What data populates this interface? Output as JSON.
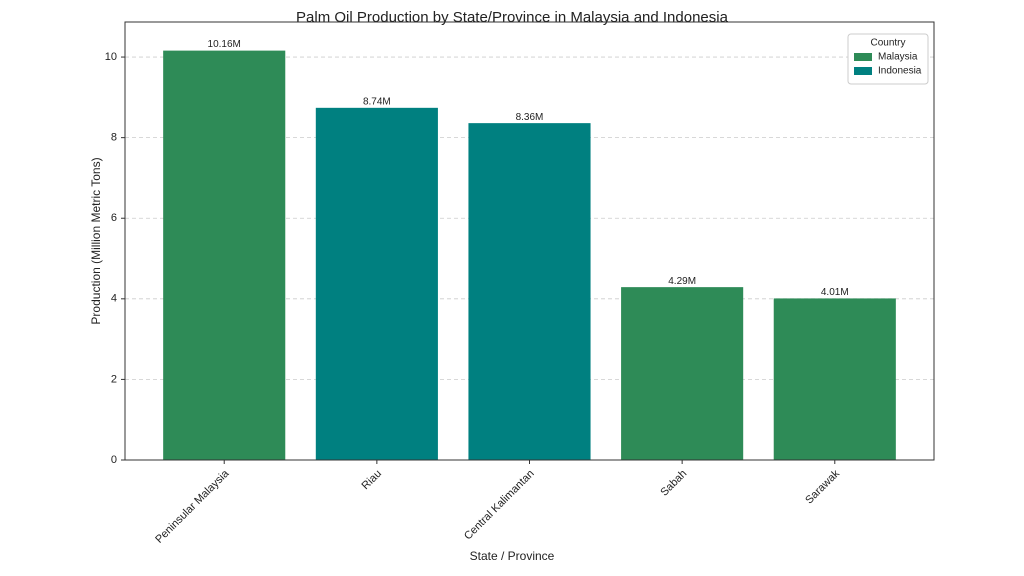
{
  "chart_data": {
    "type": "bar",
    "title": "Palm Oil Production by State/Province in Malaysia and Indonesia",
    "x_label": "State / Province",
    "y_label": "Production (Million Metric Tons)",
    "categories": [
      "Peninsular Malaysia",
      "Riau",
      "Central Kalimantan",
      "Sabah",
      "Sarawak"
    ],
    "series": [
      {
        "name": "Malaysia",
        "color": "#2e8b57",
        "values": [
          10.16,
          null,
          null,
          4.29,
          4.01
        ],
        "value_labels": [
          "10.16M",
          null,
          null,
          "4.29M",
          "4.01M"
        ]
      },
      {
        "name": "Indonesia",
        "color": "#008080",
        "values": [
          null,
          8.74,
          8.36,
          null,
          null
        ],
        "value_labels": [
          null,
          "8.74M",
          "8.36M",
          null,
          null
        ]
      }
    ],
    "legend_title": "Country",
    "legend": "upper right",
    "ylim": [
      0,
      10.87
    ],
    "yticks": [
      0,
      2,
      4,
      6,
      8,
      10
    ],
    "grid": true
  }
}
